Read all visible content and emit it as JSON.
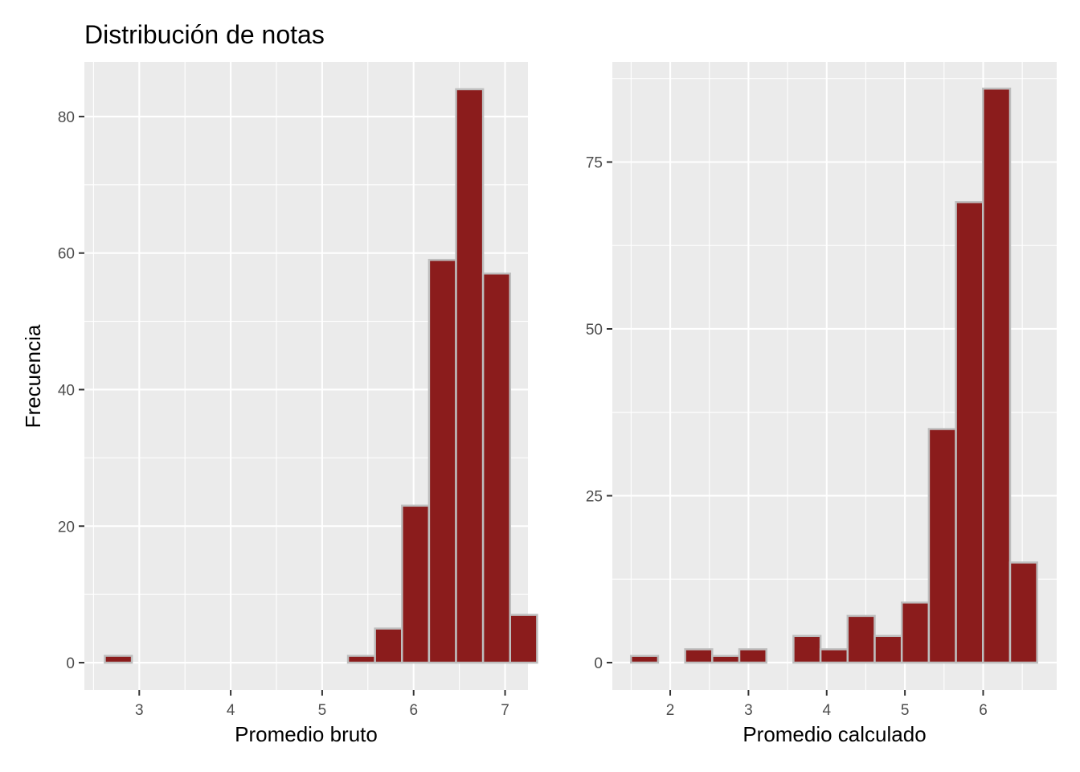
{
  "title": "Distribución de notas",
  "ylabel": "Frecuencia",
  "colors": {
    "bar_fill": "#8b1c1c",
    "bar_outline": "#bebebe",
    "panel_bg": "#ebebeb",
    "grid": "#ffffff"
  },
  "chart_data": [
    {
      "type": "bar",
      "title": "Distribución de notas",
      "xlabel": "Promedio bruto",
      "ylabel": "Frecuencia",
      "xlim": [
        2.4,
        7.25
      ],
      "ylim": [
        -4,
        88
      ],
      "xticks": [
        3,
        4,
        5,
        6,
        7
      ],
      "xtick_labels": [
        "3",
        "4",
        "5",
        "6",
        "7"
      ],
      "yticks": [
        0,
        20,
        40,
        60,
        80
      ],
      "ytick_labels": [
        "0",
        "20",
        "40",
        "60",
        "80"
      ],
      "bin_width": 0.2954,
      "x_start": 2.6236,
      "values": [
        1,
        0,
        0,
        0,
        0,
        0,
        0,
        0,
        0,
        1,
        5,
        23,
        59,
        84,
        57,
        7
      ],
      "grid": true
    },
    {
      "type": "bar",
      "title": "",
      "xlabel": "Promedio calculado",
      "ylabel": "Frecuencia",
      "xlim": [
        1.26,
        6.94
      ],
      "ylim": [
        -4.1,
        90
      ],
      "xticks": [
        2,
        3,
        4,
        5,
        6
      ],
      "xtick_labels": [
        "2",
        "3",
        "4",
        "5",
        "6"
      ],
      "yticks": [
        0,
        25,
        50,
        75
      ],
      "ytick_labels": [
        "0",
        "25",
        "50",
        "75"
      ],
      "bin_width": 0.3461,
      "x_start": 1.4987,
      "values": [
        1,
        0,
        2,
        1,
        2,
        0,
        4,
        2,
        7,
        4,
        9,
        35,
        69,
        86,
        15
      ],
      "grid": true
    }
  ]
}
